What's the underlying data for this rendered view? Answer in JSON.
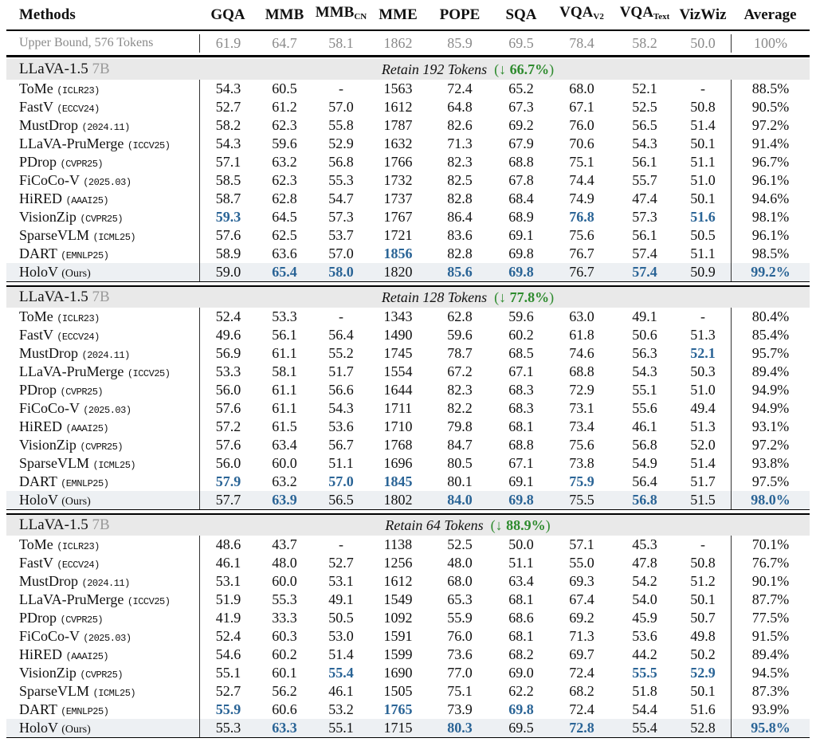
{
  "colors": {
    "highlight_blue": "#2a6496",
    "green": "#2e8b2e",
    "band_bg": "#e9e9e9",
    "ours_bg": "#edf0f3",
    "muted_gray": "#8a8a8a"
  },
  "header": {
    "methods_label": "Methods",
    "columns": [
      {
        "label": "GQA",
        "sub": ""
      },
      {
        "label": "MMB",
        "sub": ""
      },
      {
        "label": "MMB",
        "sub": "CN"
      },
      {
        "label": "MME",
        "sub": ""
      },
      {
        "label": "POPE",
        "sub": ""
      },
      {
        "label": "SQA",
        "sub": ""
      },
      {
        "label": "VQA",
        "sub": "V2"
      },
      {
        "label": "VQA",
        "sub": "Text"
      },
      {
        "label": "VizWiz",
        "sub": ""
      },
      {
        "label": "Average",
        "sub": ""
      }
    ]
  },
  "upper_bound": {
    "label": "Upper Bound, 576 Tokens",
    "values": [
      "61.9",
      "64.7",
      "58.1",
      "1862",
      "85.9",
      "69.5",
      "78.4",
      "58.2",
      "50.0",
      "100%"
    ]
  },
  "chart_data": {
    "type": "table",
    "note": "Token pruning results for LLaVA-1.5 7B at three retention levels"
  },
  "sections": [
    {
      "model": "LLaVA-1.5",
      "variant": "7B",
      "retain_title": "Retain 192 Tokens",
      "arrow": "↓",
      "drop_pct": "66.7%",
      "rows": [
        {
          "method": "ToMe",
          "venue": "(ICLR23)",
          "ours": false,
          "values": [
            "54.3",
            "60.5",
            "-",
            "1563",
            "72.4",
            "65.2",
            "68.0",
            "52.1",
            "-",
            "88.5%"
          ],
          "blue": []
        },
        {
          "method": "FastV",
          "venue": "(ECCV24)",
          "ours": false,
          "values": [
            "52.7",
            "61.2",
            "57.0",
            "1612",
            "64.8",
            "67.3",
            "67.1",
            "52.5",
            "50.8",
            "90.5%"
          ],
          "blue": []
        },
        {
          "method": "MustDrop",
          "venue": "(2024.11)",
          "ours": false,
          "values": [
            "58.2",
            "62.3",
            "55.8",
            "1787",
            "82.6",
            "69.2",
            "76.0",
            "56.5",
            "51.4",
            "97.2%"
          ],
          "blue": []
        },
        {
          "method": "LLaVA-PruMerge",
          "venue": "(ICCV25)",
          "ours": false,
          "values": [
            "54.3",
            "59.6",
            "52.9",
            "1632",
            "71.3",
            "67.9",
            "70.6",
            "54.3",
            "50.1",
            "91.4%"
          ],
          "blue": []
        },
        {
          "method": "PDrop",
          "venue": "(CVPR25)",
          "ours": false,
          "values": [
            "57.1",
            "63.2",
            "56.8",
            "1766",
            "82.3",
            "68.8",
            "75.1",
            "56.1",
            "51.1",
            "96.7%"
          ],
          "blue": []
        },
        {
          "method": "FiCoCo-V",
          "venue": "(2025.03)",
          "ours": false,
          "values": [
            "58.5",
            "62.3",
            "55.3",
            "1732",
            "82.5",
            "67.8",
            "74.4",
            "55.7",
            "51.0",
            "96.1%"
          ],
          "blue": []
        },
        {
          "method": "HiRED",
          "venue": "(AAAI25)",
          "ours": false,
          "values": [
            "58.7",
            "62.8",
            "54.7",
            "1737",
            "82.8",
            "68.4",
            "74.9",
            "47.4",
            "50.1",
            "94.6%"
          ],
          "blue": []
        },
        {
          "method": "VisionZip",
          "venue": "(CVPR25)",
          "ours": false,
          "values": [
            "59.3",
            "64.5",
            "57.3",
            "1767",
            "86.4",
            "68.9",
            "76.8",
            "57.3",
            "51.6",
            "98.1%"
          ],
          "blue": [
            0,
            6,
            8
          ]
        },
        {
          "method": "SparseVLM",
          "venue": "(ICML25)",
          "ours": false,
          "values": [
            "57.6",
            "62.5",
            "53.7",
            "1721",
            "83.6",
            "69.1",
            "75.6",
            "56.1",
            "50.5",
            "96.1%"
          ],
          "blue": []
        },
        {
          "method": "DART",
          "venue": "(EMNLP25)",
          "ours": false,
          "values": [
            "58.9",
            "63.6",
            "57.0",
            "1856",
            "82.8",
            "69.8",
            "76.7",
            "57.4",
            "51.1",
            "98.5%"
          ],
          "blue": [
            3
          ]
        },
        {
          "method": "HoloV",
          "venue": "(Ours)",
          "ours": true,
          "values": [
            "59.0",
            "65.4",
            "58.0",
            "1820",
            "85.6",
            "69.8",
            "76.7",
            "57.4",
            "50.9",
            "99.2%"
          ],
          "blue": [
            1,
            2,
            4,
            5,
            7,
            9
          ]
        }
      ]
    },
    {
      "model": "LLaVA-1.5",
      "variant": "7B",
      "retain_title": "Retain 128 Tokens",
      "arrow": "↓",
      "drop_pct": "77.8%",
      "rows": [
        {
          "method": "ToMe",
          "venue": "(ICLR23)",
          "ours": false,
          "values": [
            "52.4",
            "53.3",
            "-",
            "1343",
            "62.8",
            "59.6",
            "63.0",
            "49.1",
            "-",
            "80.4%"
          ],
          "blue": []
        },
        {
          "method": "FastV",
          "venue": "(ECCV24)",
          "ours": false,
          "values": [
            "49.6",
            "56.1",
            "56.4",
            "1490",
            "59.6",
            "60.2",
            "61.8",
            "50.6",
            "51.3",
            "85.4%"
          ],
          "blue": []
        },
        {
          "method": "MustDrop",
          "venue": "(2024.11)",
          "ours": false,
          "values": [
            "56.9",
            "61.1",
            "55.2",
            "1745",
            "78.7",
            "68.5",
            "74.6",
            "56.3",
            "52.1",
            "95.7%"
          ],
          "blue": [
            8
          ]
        },
        {
          "method": "LLaVA-PruMerge",
          "venue": "(ICCV25)",
          "ours": false,
          "values": [
            "53.3",
            "58.1",
            "51.7",
            "1554",
            "67.2",
            "67.1",
            "68.8",
            "54.3",
            "50.3",
            "89.4%"
          ],
          "blue": []
        },
        {
          "method": "PDrop",
          "venue": "(CVPR25)",
          "ours": false,
          "values": [
            "56.0",
            "61.1",
            "56.6",
            "1644",
            "82.3",
            "68.3",
            "72.9",
            "55.1",
            "51.0",
            "94.9%"
          ],
          "blue": []
        },
        {
          "method": "FiCoCo-V",
          "venue": "(2025.03)",
          "ours": false,
          "values": [
            "57.6",
            "61.1",
            "54.3",
            "1711",
            "82.2",
            "68.3",
            "73.1",
            "55.6",
            "49.4",
            "94.9%"
          ],
          "blue": []
        },
        {
          "method": "HiRED",
          "venue": "(AAAI25)",
          "ours": false,
          "values": [
            "57.2",
            "61.5",
            "53.6",
            "1710",
            "79.8",
            "68.1",
            "73.4",
            "46.1",
            "51.3",
            "93.1%"
          ],
          "blue": []
        },
        {
          "method": "VisionZip",
          "venue": "(CVPR25)",
          "ours": false,
          "values": [
            "57.6",
            "63.4",
            "56.7",
            "1768",
            "84.7",
            "68.8",
            "75.6",
            "56.8",
            "52.0",
            "97.2%"
          ],
          "blue": []
        },
        {
          "method": "SparseVLM",
          "venue": "(ICML25)",
          "ours": false,
          "values": [
            "56.0",
            "60.0",
            "51.1",
            "1696",
            "80.5",
            "67.1",
            "73.8",
            "54.9",
            "51.4",
            "93.8%"
          ],
          "blue": []
        },
        {
          "method": "DART",
          "venue": "(EMNLP25)",
          "ours": false,
          "values": [
            "57.9",
            "63.2",
            "57.0",
            "1845",
            "80.1",
            "69.1",
            "75.9",
            "56.4",
            "51.7",
            "97.5%"
          ],
          "blue": [
            0,
            2,
            3,
            6
          ]
        },
        {
          "method": "HoloV",
          "venue": "(Ours)",
          "ours": true,
          "values": [
            "57.7",
            "63.9",
            "56.5",
            "1802",
            "84.0",
            "69.8",
            "75.5",
            "56.8",
            "51.5",
            "98.0%"
          ],
          "blue": [
            1,
            4,
            5,
            7,
            9
          ]
        }
      ]
    },
    {
      "model": "LLaVA-1.5",
      "variant": "7B",
      "retain_title": "Retain 64 Tokens",
      "arrow": "↓",
      "drop_pct": "88.9%",
      "rows": [
        {
          "method": "ToMe",
          "venue": "(ICLR23)",
          "ours": false,
          "values": [
            "48.6",
            "43.7",
            "-",
            "1138",
            "52.5",
            "50.0",
            "57.1",
            "45.3",
            "-",
            "70.1%"
          ],
          "blue": []
        },
        {
          "method": "FastV",
          "venue": "(ECCV24)",
          "ours": false,
          "values": [
            "46.1",
            "48.0",
            "52.7",
            "1256",
            "48.0",
            "51.1",
            "55.0",
            "47.8",
            "50.8",
            "76.7%"
          ],
          "blue": []
        },
        {
          "method": "MustDrop",
          "venue": "(2024.11)",
          "ours": false,
          "values": [
            "53.1",
            "60.0",
            "53.1",
            "1612",
            "68.0",
            "63.4",
            "69.3",
            "54.2",
            "51.2",
            "90.1%"
          ],
          "blue": []
        },
        {
          "method": "LLaVA-PruMerge",
          "venue": "(ICCV25)",
          "ours": false,
          "values": [
            "51.9",
            "55.3",
            "49.1",
            "1549",
            "65.3",
            "68.1",
            "67.4",
            "54.0",
            "50.1",
            "87.7%"
          ],
          "blue": []
        },
        {
          "method": "PDrop",
          "venue": "(CVPR25)",
          "ours": false,
          "values": [
            "41.9",
            "33.3",
            "50.5",
            "1092",
            "55.9",
            "68.6",
            "69.2",
            "45.9",
            "50.7",
            "77.5%"
          ],
          "blue": []
        },
        {
          "method": "FiCoCo-V",
          "venue": "(2025.03)",
          "ours": false,
          "values": [
            "52.4",
            "60.3",
            "53.0",
            "1591",
            "76.0",
            "68.1",
            "71.3",
            "53.6",
            "49.8",
            "91.5%"
          ],
          "blue": []
        },
        {
          "method": "HiRED",
          "venue": "(AAAI25)",
          "ours": false,
          "values": [
            "54.6",
            "60.2",
            "51.4",
            "1599",
            "73.6",
            "68.2",
            "69.7",
            "44.2",
            "50.2",
            "89.4%"
          ],
          "blue": []
        },
        {
          "method": "VisionZip",
          "venue": "(CVPR25)",
          "ours": false,
          "values": [
            "55.1",
            "60.1",
            "55.4",
            "1690",
            "77.0",
            "69.0",
            "72.4",
            "55.5",
            "52.9",
            "94.5%"
          ],
          "blue": [
            2,
            7,
            8
          ]
        },
        {
          "method": "SparseVLM",
          "venue": "(ICML25)",
          "ours": false,
          "values": [
            "52.7",
            "56.2",
            "46.1",
            "1505",
            "75.1",
            "62.2",
            "68.2",
            "51.8",
            "50.1",
            "87.3%"
          ],
          "blue": []
        },
        {
          "method": "DART",
          "venue": "(EMNLP25)",
          "ours": false,
          "values": [
            "55.9",
            "60.6",
            "53.2",
            "1765",
            "73.9",
            "69.8",
            "72.4",
            "54.4",
            "51.6",
            "93.9%"
          ],
          "blue": [
            0,
            3,
            5
          ]
        },
        {
          "method": "HoloV",
          "venue": "(Ours)",
          "ours": true,
          "values": [
            "55.3",
            "63.3",
            "55.1",
            "1715",
            "80.3",
            "69.5",
            "72.8",
            "55.4",
            "52.8",
            "95.8%"
          ],
          "blue": [
            1,
            4,
            6,
            9
          ]
        }
      ]
    }
  ]
}
